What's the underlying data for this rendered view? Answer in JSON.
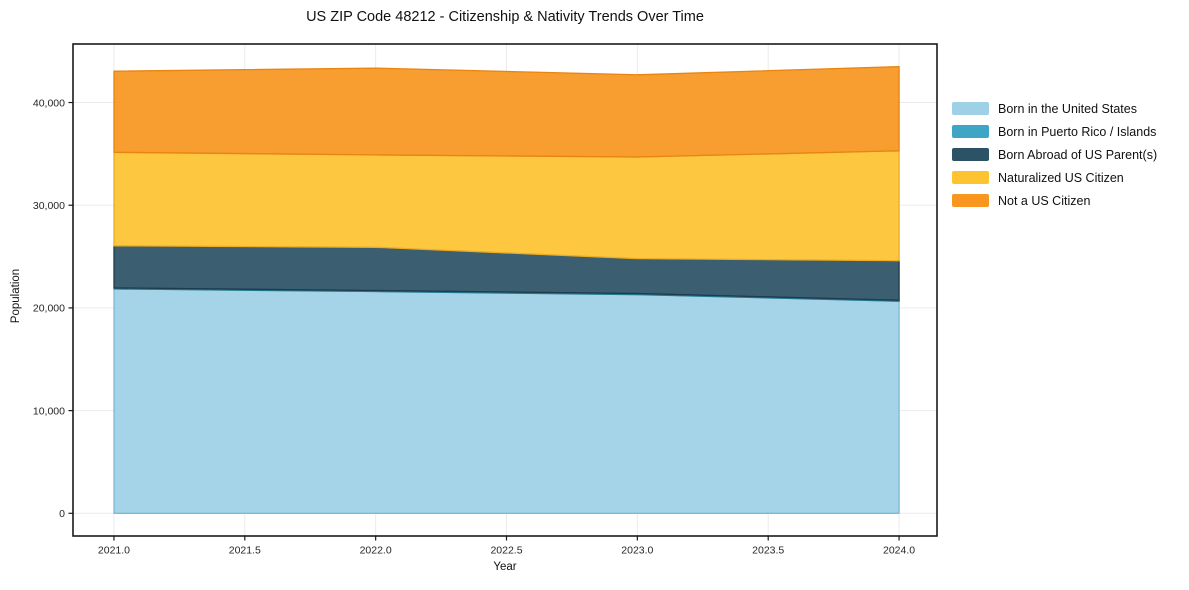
{
  "chart_data": {
    "type": "area",
    "stacked": true,
    "title": "US ZIP Code 48212 - Citizenship & Nativity Trends Over Time",
    "xlabel": "Year",
    "ylabel": "Population",
    "x": [
      2021,
      2022,
      2023,
      2024
    ],
    "series": [
      {
        "name": "Born in the United States",
        "color": "#9ed0e6",
        "edge": "#7db9d6",
        "values": [
          21850,
          21600,
          21300,
          20650
        ]
      },
      {
        "name": "Born in Puerto Rico / Islands",
        "color": "#3ea6c4",
        "edge": "#23778f",
        "values": [
          100,
          100,
          100,
          100
        ]
      },
      {
        "name": "Born Abroad of US Parent(s)",
        "color": "#2c5266",
        "edge": "#1e3c4c",
        "values": [
          4100,
          4200,
          3400,
          3850
        ]
      },
      {
        "name": "Naturalized US Citizen",
        "color": "#fdc331",
        "edge": "#edac24",
        "values": [
          9100,
          9000,
          9900,
          10700
        ]
      },
      {
        "name": "Not a US Citizen",
        "color": "#f8961f",
        "edge": "#e88410",
        "values": [
          7900,
          8450,
          8000,
          8200
        ]
      }
    ],
    "x_ticks": [
      "2021.0",
      "2021.5",
      "2022.0",
      "2022.5",
      "2023.0",
      "2023.5",
      "2024.0"
    ],
    "x_tick_values": [
      2021,
      2021.5,
      2022,
      2022.5,
      2023,
      2023.5,
      2024
    ],
    "y_ticks": [
      "0",
      "10,000",
      "20,000",
      "30,000",
      "40,000"
    ],
    "y_tick_values": [
      0,
      10000,
      20000,
      30000,
      40000
    ],
    "xlim": [
      2020.8435,
      2024.145
    ],
    "ylim": [
      -2210,
      45700
    ],
    "grid": true,
    "grid_color": "#ebebeb",
    "spine_color": "#1a1a1a",
    "legend_position": "right"
  }
}
